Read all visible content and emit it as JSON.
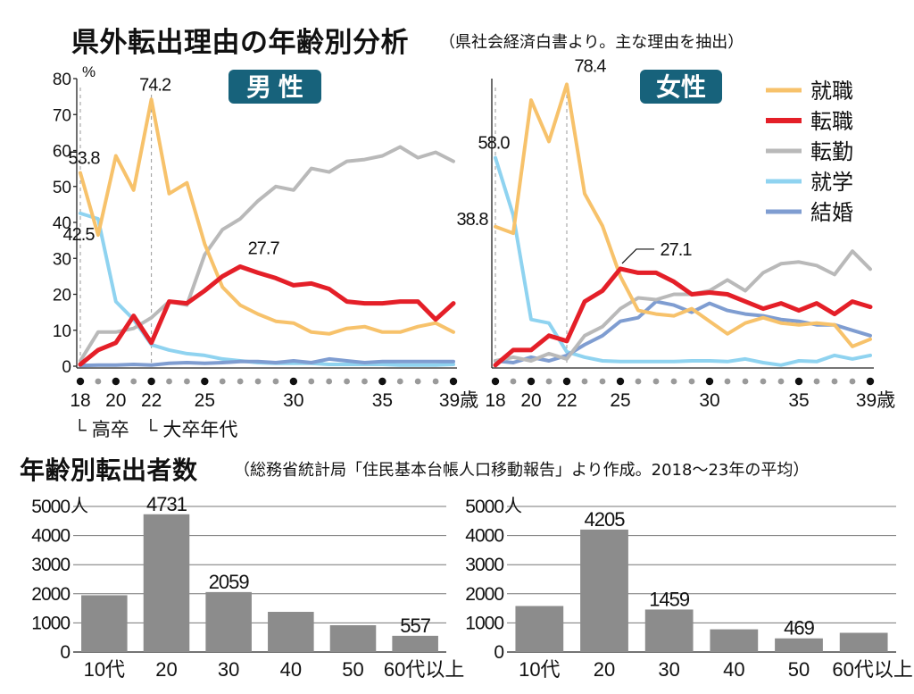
{
  "title1": {
    "main": "県外転出理由の年齢別分析",
    "sub": "（県社会経済白書より。主な理由を抽出）"
  },
  "title2": {
    "main": "年齢別転出者数",
    "sub": "（総務省統計局「住民基本台帳人口移動報告」より作成。2018～23年の平均）"
  },
  "colors": {
    "就職": "#f7c26b",
    "転職": "#e41f28",
    "転勤": "#b9b9b9",
    "就学": "#8fd3f0",
    "結婚": "#7f9dd1",
    "bar": "#8c8c8c",
    "badge": "#17627b"
  },
  "chart_data": [
    {
      "id": "male-reasons",
      "type": "line",
      "badge": "男 性",
      "y_unit": "%",
      "x_unit": "歳",
      "ylim": [
        0,
        80
      ],
      "xlim": [
        18,
        39
      ],
      "y_ticks": [
        0,
        10,
        20,
        30,
        40,
        50,
        60,
        70,
        80
      ],
      "x_tick_labels": [
        18,
        20,
        22,
        25,
        30,
        35,
        39
      ],
      "x": [
        18,
        19,
        20,
        21,
        22,
        23,
        24,
        25,
        26,
        27,
        28,
        29,
        30,
        31,
        32,
        33,
        34,
        35,
        36,
        37,
        38,
        39
      ],
      "series": [
        {
          "name": "就職",
          "values": [
            53.8,
            36.5,
            58.5,
            49,
            74.2,
            48,
            51,
            34,
            22,
            17,
            14.5,
            12.5,
            12,
            9.5,
            9,
            10.5,
            11,
            9.5,
            9.5,
            11,
            12,
            9.5
          ]
        },
        {
          "name": "転職",
          "values": [
            0.5,
            4.5,
            6.5,
            14,
            6.5,
            18,
            17.5,
            21,
            25,
            27.7,
            26,
            24.5,
            22.5,
            23,
            21.5,
            18,
            17.5,
            17.5,
            18,
            18,
            13,
            17.5
          ]
        },
        {
          "name": "転勤",
          "values": [
            1.5,
            9.5,
            9.5,
            10.5,
            13.5,
            18,
            17,
            31,
            38,
            41,
            46,
            50,
            49,
            55,
            54,
            57,
            57.5,
            58.5,
            61,
            58,
            59.5,
            57
          ]
        },
        {
          "name": "就学",
          "values": [
            42.5,
            41,
            18,
            13,
            6,
            4.5,
            3.5,
            3,
            2,
            1.5,
            1,
            0.8,
            0.8,
            0.8,
            0.5,
            0.5,
            0.5,
            0.5,
            0.3,
            0.3,
            0.3,
            0.5
          ]
        },
        {
          "name": "結婚",
          "values": [
            0.2,
            0.3,
            0.3,
            0.5,
            0.3,
            0.8,
            1,
            0.8,
            1,
            1.3,
            1.3,
            1,
            1.5,
            1,
            2,
            1.5,
            1,
            1.3,
            1.3,
            1.3,
            1.3,
            1.3
          ]
        }
      ],
      "annotations": [
        {
          "text": "53.8",
          "x": 18,
          "y": 53.8,
          "pos": "above"
        },
        {
          "text": "42.5",
          "x": 18,
          "y": 42.5,
          "pos": "below-left"
        },
        {
          "text": "74.2",
          "x": 22,
          "y": 74.2,
          "pos": "above"
        },
        {
          "text": "27.7",
          "x": 27,
          "y": 27.7,
          "pos": "above-right"
        }
      ],
      "notes": [
        {
          "text": "└ 高卒",
          "x": 18
        },
        {
          "text": "└ 大卒年代",
          "x": 22
        }
      ]
    },
    {
      "id": "female-reasons",
      "type": "line",
      "badge": "女性",
      "x_unit": "歳",
      "ylim": [
        0,
        80
      ],
      "xlim": [
        18,
        39
      ],
      "x_tick_labels": [
        18,
        20,
        22,
        25,
        30,
        35,
        39
      ],
      "x": [
        18,
        19,
        20,
        21,
        22,
        23,
        24,
        25,
        26,
        27,
        28,
        29,
        30,
        31,
        32,
        33,
        34,
        35,
        36,
        37,
        38,
        39
      ],
      "series": [
        {
          "name": "就職",
          "values": [
            38.8,
            37,
            74,
            62.5,
            78.4,
            48,
            39,
            25,
            15.5,
            14.5,
            14,
            16,
            12.5,
            9,
            12,
            13.5,
            12,
            11.5,
            12,
            11.5,
            5.5,
            7.5
          ]
        },
        {
          "name": "転職",
          "values": [
            0.3,
            4.5,
            4.5,
            8.5,
            7,
            18,
            21,
            27.1,
            26,
            26,
            23.5,
            20,
            20.5,
            20,
            18,
            16,
            17.5,
            15.5,
            17.5,
            14.5,
            18,
            16.5
          ]
        },
        {
          "name": "転勤",
          "values": [
            1.5,
            2.5,
            1.5,
            3.5,
            2,
            8.5,
            11,
            16,
            19,
            18.5,
            20,
            20,
            21,
            24,
            21,
            26,
            28.5,
            29,
            28,
            25.5,
            32,
            27
          ]
        },
        {
          "name": "就学",
          "values": [
            58.0,
            42,
            13,
            12,
            4,
            2.5,
            1.5,
            1.3,
            1.3,
            1.3,
            1.3,
            1.5,
            1.5,
            1.3,
            2,
            1,
            0.3,
            1.5,
            1.3,
            3,
            2,
            3
          ]
        },
        {
          "name": "結婚",
          "values": [
            1.5,
            1,
            2.5,
            1.5,
            3,
            6,
            8.5,
            12.5,
            13.5,
            18,
            17,
            15,
            17.5,
            15.5,
            14.5,
            14,
            13,
            12.5,
            11.5,
            11.5,
            10,
            8.5
          ]
        }
      ],
      "annotations": [
        {
          "text": "58.0",
          "x": 18,
          "y": 58.0,
          "pos": "above-left"
        },
        {
          "text": "38.8",
          "x": 18,
          "y": 38.8,
          "pos": "left"
        },
        {
          "text": "78.4",
          "x": 22,
          "y": 78.4,
          "pos": "above-right"
        },
        {
          "text": "27.1",
          "x": 25,
          "y": 27.1,
          "pos": "leader"
        }
      ]
    },
    {
      "id": "male-movers",
      "type": "bar",
      "ylim": [
        0,
        5000
      ],
      "y_ticks": [
        0,
        1000,
        2000,
        3000,
        4000,
        5000
      ],
      "y_unit": "人",
      "categories": [
        "10代",
        "20",
        "30",
        "40",
        "50",
        "60代以上"
      ],
      "values": [
        1950,
        4731,
        2059,
        1380,
        920,
        557
      ],
      "labels": [
        "",
        "4731",
        "2059",
        "",
        "",
        "557"
      ]
    },
    {
      "id": "female-movers",
      "type": "bar",
      "ylim": [
        0,
        5000
      ],
      "y_ticks": [
        0,
        1000,
        2000,
        3000,
        4000,
        5000
      ],
      "y_unit": "人",
      "categories": [
        "10代",
        "20",
        "30",
        "40",
        "50",
        "60代以上"
      ],
      "values": [
        1580,
        4205,
        1459,
        780,
        469,
        660
      ],
      "labels": [
        "",
        "4205",
        "1459",
        "",
        "469",
        ""
      ]
    }
  ]
}
